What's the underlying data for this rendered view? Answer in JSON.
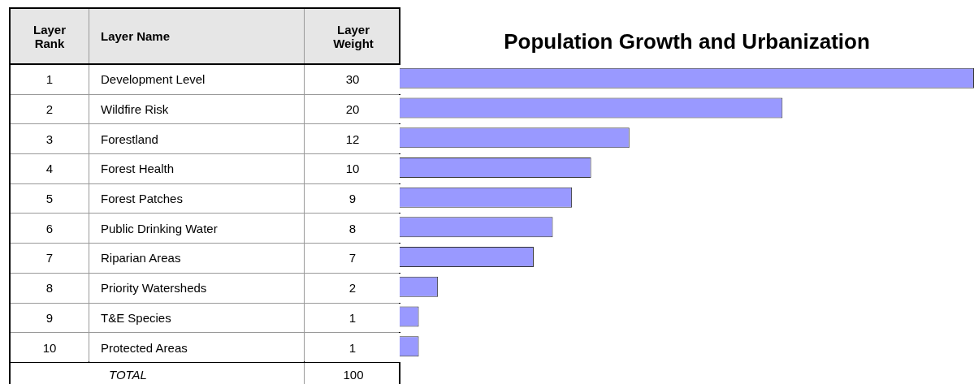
{
  "chart_data": {
    "type": "bar",
    "orientation": "horizontal",
    "title": "Population Growth and Urbanization",
    "categories": [
      "Development Level",
      "Wildfire Risk",
      "Forestland",
      "Forest Health",
      "Forest Patches",
      "Public Drinking Water",
      "Riparian Areas",
      "Priority Watersheds",
      "T&E Species",
      "Protected Areas"
    ],
    "values": [
      30,
      20,
      12,
      10,
      9,
      8,
      7,
      2,
      1,
      1
    ],
    "color": "#9999ff",
    "xlim": [
      0,
      30
    ],
    "tick_labels": false,
    "legend": false,
    "data_labels": true,
    "annotations": [
      "Layer Rank",
      "Layer Name",
      "Layer Weight",
      "1",
      "2",
      "3",
      "4",
      "5",
      "6",
      "7",
      "8",
      "9",
      "10",
      "TOTAL",
      "100"
    ]
  }
}
